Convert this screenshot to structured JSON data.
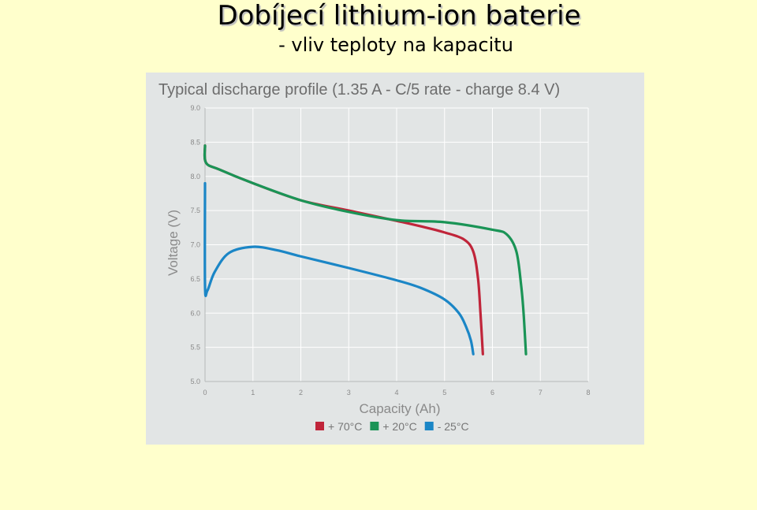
{
  "slide": {
    "title": "Dobíjecí lithium-ion baterie",
    "subtitle": "- vliv teploty na kapacitu"
  },
  "chart_data": {
    "type": "line",
    "title": "Typical discharge profile (1.35 A - C/5 rate - charge 8.4 V)",
    "xlabel": "Capacity (Ah)",
    "ylabel": "Voltage (V)",
    "xlim": [
      0,
      8
    ],
    "ylim": [
      5.0,
      9.0
    ],
    "x_ticks": [
      0,
      1,
      2,
      3,
      4,
      5,
      6,
      7,
      8
    ],
    "y_ticks": [
      5.0,
      5.5,
      6.0,
      6.5,
      7.0,
      7.5,
      8.0,
      8.5,
      9.0
    ],
    "grid": true,
    "legend_position": "bottom",
    "series": [
      {
        "name": "+ 70°C",
        "color": "#c0253a",
        "points": [
          [
            0.0,
            8.45
          ],
          [
            0.02,
            8.2
          ],
          [
            0.3,
            8.1
          ],
          [
            1.0,
            7.9
          ],
          [
            2.0,
            7.65
          ],
          [
            3.0,
            7.5
          ],
          [
            4.0,
            7.35
          ],
          [
            4.5,
            7.27
          ],
          [
            5.0,
            7.18
          ],
          [
            5.4,
            7.08
          ],
          [
            5.6,
            6.9
          ],
          [
            5.7,
            6.5
          ],
          [
            5.75,
            6.0
          ],
          [
            5.8,
            5.4
          ]
        ]
      },
      {
        "name": "+ 20°C",
        "color": "#1a9456",
        "points": [
          [
            0.0,
            8.45
          ],
          [
            0.02,
            8.2
          ],
          [
            0.3,
            8.1
          ],
          [
            1.0,
            7.9
          ],
          [
            2.0,
            7.65
          ],
          [
            3.0,
            7.48
          ],
          [
            4.0,
            7.36
          ],
          [
            5.0,
            7.33
          ],
          [
            6.0,
            7.22
          ],
          [
            6.3,
            7.15
          ],
          [
            6.5,
            6.9
          ],
          [
            6.6,
            6.4
          ],
          [
            6.65,
            6.0
          ],
          [
            6.7,
            5.4
          ]
        ]
      },
      {
        "name": "- 25°C",
        "color": "#1b86c6",
        "points": [
          [
            0.0,
            7.9
          ],
          [
            0.0,
            6.4
          ],
          [
            0.05,
            6.33
          ],
          [
            0.2,
            6.6
          ],
          [
            0.5,
            6.88
          ],
          [
            1.0,
            6.97
          ],
          [
            1.5,
            6.92
          ],
          [
            2.0,
            6.83
          ],
          [
            3.0,
            6.66
          ],
          [
            4.0,
            6.48
          ],
          [
            4.5,
            6.37
          ],
          [
            5.0,
            6.2
          ],
          [
            5.3,
            6.0
          ],
          [
            5.45,
            5.8
          ],
          [
            5.55,
            5.6
          ],
          [
            5.6,
            5.4
          ]
        ]
      }
    ]
  }
}
